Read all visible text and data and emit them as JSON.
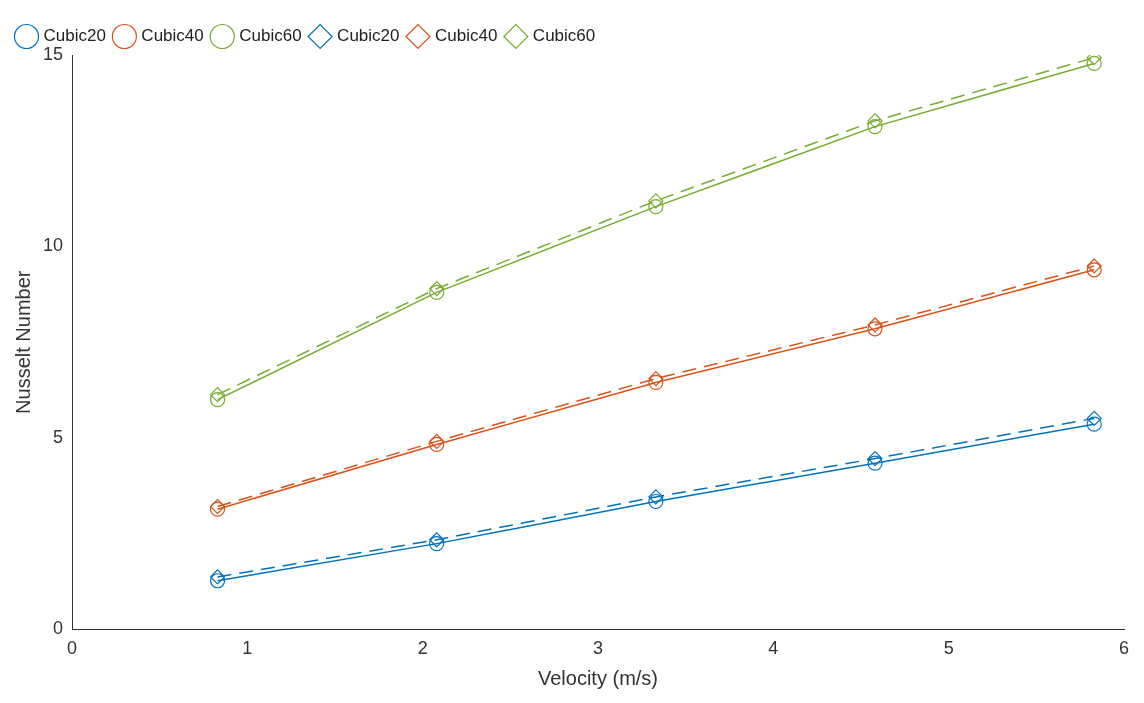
{
  "chart_data": {
    "type": "line",
    "xlabel": "Velocity (m/s)",
    "ylabel": "Nusselt Number",
    "x": [
      0.83,
      2.08,
      3.33,
      4.58,
      5.83
    ],
    "xlim": [
      0,
      6
    ],
    "xticks": [
      0,
      1,
      2,
      3,
      4,
      5,
      6
    ],
    "ylim": [
      0,
      15
    ],
    "yticks": [
      0,
      5,
      10,
      15
    ],
    "grid": false,
    "legend": "top left",
    "series": [
      {
        "name": "Cubic20",
        "color": "#0072bd",
        "marker": "circle",
        "line_style": "solid",
        "values": [
          1.27,
          2.24,
          3.34,
          4.34,
          5.36
        ]
      },
      {
        "name": "Cubic40",
        "color": "#d95319",
        "marker": "circle",
        "line_style": "solid",
        "values": [
          3.14,
          4.83,
          6.45,
          7.85,
          9.39
        ]
      },
      {
        "name": "Cubic60",
        "color": "#77ac30",
        "marker": "circle",
        "line_style": "solid",
        "values": [
          6.0,
          8.8,
          11.04,
          13.13,
          14.78
        ]
      },
      {
        "name": "Cubic20",
        "color": "#0072bd",
        "marker": "diamond",
        "line_style": "dashed",
        "values": [
          1.37,
          2.34,
          3.46,
          4.46,
          5.51
        ]
      },
      {
        "name": "Cubic40",
        "color": "#d95319",
        "marker": "diamond",
        "line_style": "dashed",
        "values": [
          3.21,
          4.91,
          6.55,
          7.95,
          9.49
        ]
      },
      {
        "name": "Cubic60",
        "color": "#77ac30",
        "marker": "diamond",
        "line_style": "dashed",
        "values": [
          6.13,
          8.9,
          11.19,
          13.28,
          14.93
        ]
      }
    ]
  }
}
